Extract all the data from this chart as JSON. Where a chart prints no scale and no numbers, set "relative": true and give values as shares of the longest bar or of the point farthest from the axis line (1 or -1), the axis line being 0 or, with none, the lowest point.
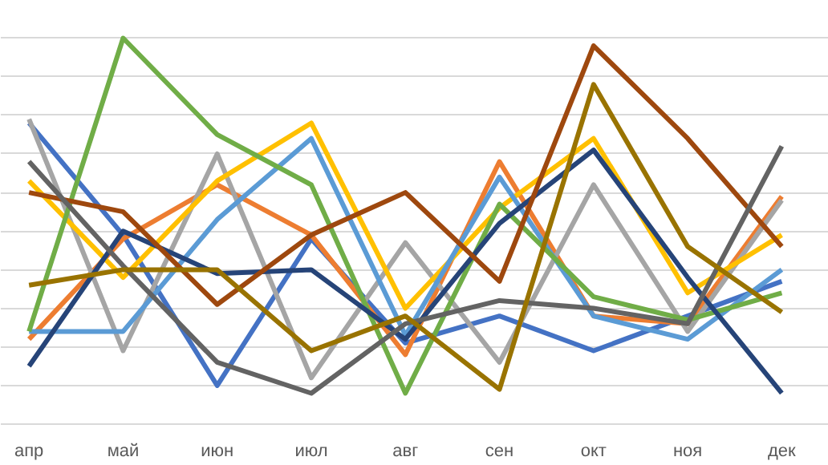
{
  "chart_data": {
    "type": "line",
    "relative": true,
    "grid": "y",
    "marker": "none",
    "line_style": "solid",
    "categories": [
      "апр",
      "май",
      "июн",
      "июл",
      "авг",
      "сен",
      "окт",
      "ноя",
      "дек"
    ],
    "series": [
      {
        "color": "#4472c4",
        "values": [
          0.78,
          0.49,
          0.1,
          0.48,
          0.21,
          0.28,
          0.19,
          0.28,
          0.37
        ]
      },
      {
        "color": "#ed7d31",
        "values": [
          0.22,
          0.48,
          0.62,
          0.49,
          0.18,
          0.68,
          0.28,
          0.26,
          0.59
        ]
      },
      {
        "color": "#a5a5a5",
        "values": [
          0.79,
          0.19,
          0.7,
          0.12,
          0.47,
          0.16,
          0.62,
          0.24,
          0.58
        ]
      },
      {
        "color": "#ffc000",
        "values": [
          0.63,
          0.38,
          0.63,
          0.78,
          0.3,
          0.56,
          0.74,
          0.34,
          0.49
        ]
      },
      {
        "color": "#5b9bd5",
        "values": [
          0.24,
          0.24,
          0.53,
          0.74,
          0.23,
          0.64,
          0.28,
          0.22,
          0.4
        ]
      },
      {
        "color": "#70ad47",
        "values": [
          0.24,
          1.0,
          0.75,
          0.62,
          0.08,
          0.57,
          0.33,
          0.27,
          0.34
        ]
      },
      {
        "color": "#264478",
        "values": [
          0.15,
          0.5,
          0.39,
          0.4,
          0.22,
          0.52,
          0.71,
          0.38,
          0.08
        ]
      },
      {
        "color": "#9e480e",
        "values": [
          0.6,
          0.55,
          0.31,
          0.49,
          0.6,
          0.37,
          0.98,
          0.74,
          0.46
        ]
      },
      {
        "color": "#636363",
        "values": [
          0.68,
          0.41,
          0.16,
          0.08,
          0.26,
          0.32,
          0.3,
          0.26,
          0.72
        ]
      },
      {
        "color": "#997300",
        "values": [
          0.36,
          0.4,
          0.4,
          0.19,
          0.28,
          0.09,
          0.88,
          0.46,
          0.29
        ]
      }
    ]
  }
}
